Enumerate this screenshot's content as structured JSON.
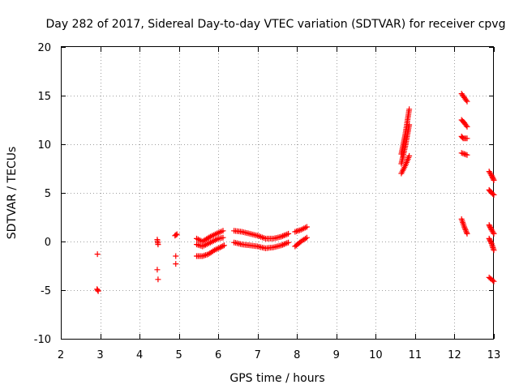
{
  "chart_data": {
    "type": "scatter",
    "title": "Day 282 of 2017, Sidereal Day-to-day VTEC variation (SDTVAR) for receiver cpvg",
    "xlabel": "GPS time / hours",
    "ylabel": "SDTVAR / TECUs",
    "xlim": [
      2,
      13
    ],
    "ylim": [
      -10,
      20
    ],
    "xticks": [
      2,
      3,
      4,
      5,
      6,
      7,
      8,
      9,
      10,
      11,
      12,
      13
    ],
    "yticks": [
      -10,
      -5,
      0,
      5,
      10,
      15,
      20
    ],
    "xtick_labels": [
      "2",
      "3",
      "4",
      "5",
      "6",
      "7",
      "8",
      "9",
      "10",
      "11",
      "12",
      "13"
    ],
    "ytick_labels": [
      "-10",
      "-5",
      "0",
      "5",
      "10",
      "15",
      "20"
    ],
    "grid": true,
    "marker": "+",
    "marker_color": "#ff0000",
    "series": [
      {
        "name": "SDTVAR",
        "segments": [
          {
            "x": [
              2.93
            ],
            "y": [
              -1.3
            ]
          },
          {
            "x": [
              2.92,
              2.95
            ],
            "y": [
              -4.9,
              -5.1
            ]
          },
          {
            "x": [
              4.45,
              4.47
            ],
            "y": [
              0.2,
              -0.3
            ]
          },
          {
            "x": [
              4.45
            ],
            "y": [
              -2.9
            ]
          },
          {
            "x": [
              4.47
            ],
            "y": [
              -3.9
            ]
          },
          {
            "x": [
              4.9,
              4.95
            ],
            "y": [
              0.6,
              0.75
            ]
          },
          {
            "x": [
              4.92
            ],
            "y": [
              -1.5
            ]
          },
          {
            "x": [
              4.92
            ],
            "y": [
              -2.3
            ]
          },
          {
            "x": [
              5.45,
              5.6,
              5.8,
              6.0,
              6.12
            ],
            "y": [
              0.3,
              0.0,
              0.5,
              0.9,
              1.1
            ]
          },
          {
            "x": [
              5.45,
              5.6,
              5.8,
              6.0,
              6.12
            ],
            "y": [
              -0.3,
              -0.5,
              -0.1,
              0.3,
              0.4
            ]
          },
          {
            "x": [
              5.45,
              5.6,
              5.75,
              5.9,
              6.05,
              6.15
            ],
            "y": [
              -1.5,
              -1.5,
              -1.3,
              -0.9,
              -0.6,
              -0.4
            ]
          },
          {
            "x": [
              6.4,
              6.6,
              6.8,
              7.0,
              7.2,
              7.4,
              7.6,
              7.78
            ],
            "y": [
              1.1,
              1.0,
              0.8,
              0.6,
              0.3,
              0.3,
              0.5,
              0.8
            ]
          },
          {
            "x": [
              6.4,
              6.6,
              6.8,
              7.0,
              7.2,
              7.4,
              7.6,
              7.78
            ],
            "y": [
              -0.1,
              -0.3,
              -0.4,
              -0.5,
              -0.7,
              -0.6,
              -0.4,
              -0.1
            ]
          },
          {
            "x": [
              7.95,
              8.1,
              8.25
            ],
            "y": [
              1.0,
              1.2,
              1.5
            ]
          },
          {
            "x": [
              7.95,
              8.1,
              8.25
            ],
            "y": [
              -0.5,
              0.0,
              0.4
            ]
          },
          {
            "x": [
              10.65,
              10.75,
              10.85
            ],
            "y": [
              9.0,
              11.0,
              13.6
            ]
          },
          {
            "x": [
              10.65,
              10.75,
              10.85
            ],
            "y": [
              8.0,
              9.8,
              12.0
            ]
          },
          {
            "x": [
              10.65,
              10.75,
              10.85
            ],
            "y": [
              7.0,
              7.8,
              8.8
            ]
          },
          {
            "x": [
              12.18,
              12.25,
              12.32
            ],
            "y": [
              15.2,
              14.8,
              14.4
            ]
          },
          {
            "x": [
              12.18,
              12.25,
              12.32
            ],
            "y": [
              12.5,
              12.2,
              11.8
            ]
          },
          {
            "x": [
              12.18,
              12.22,
              12.32
            ],
            "y": [
              10.8,
              10.6,
              10.6
            ]
          },
          {
            "x": [
              12.18,
              12.25,
              12.32
            ],
            "y": [
              9.1,
              9.0,
              8.9
            ]
          },
          {
            "x": [
              12.18,
              12.25,
              12.32
            ],
            "y": [
              2.3,
              1.5,
              0.8
            ]
          },
          {
            "x": [
              12.88,
              12.94,
              13.0
            ],
            "y": [
              7.2,
              6.8,
              6.3
            ]
          },
          {
            "x": [
              12.88,
              12.94,
              13.0
            ],
            "y": [
              5.3,
              5.0,
              4.8
            ]
          },
          {
            "x": [
              12.88,
              12.94,
              13.0
            ],
            "y": [
              1.7,
              1.2,
              0.8
            ]
          },
          {
            "x": [
              12.88,
              12.94,
              13.0
            ],
            "y": [
              0.3,
              -0.2,
              -0.9
            ]
          },
          {
            "x": [
              12.88,
              12.94,
              13.0
            ],
            "y": [
              -3.7,
              -3.9,
              -4.1
            ]
          }
        ]
      }
    ]
  }
}
